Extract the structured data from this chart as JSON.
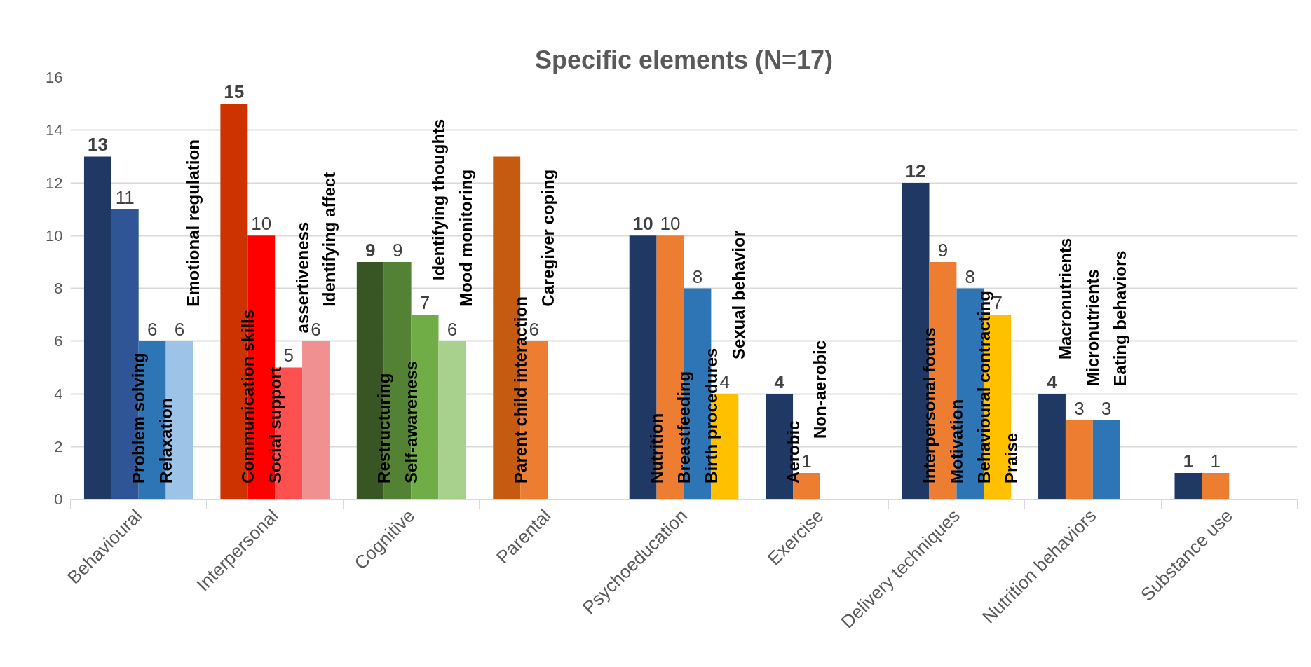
{
  "chart_data": {
    "type": "bar",
    "title": "Specific elements (N=17)",
    "categories": [
      "Behavioural",
      "Interpersonal",
      "Cognitive",
      "Parental",
      "Psychoeducation",
      "Exercise",
      "Delivery techniques",
      "Nutrition behaviors",
      "Substance use"
    ],
    "ylim": [
      0,
      16
    ],
    "yticks": [
      0,
      2,
      4,
      6,
      8,
      10,
      12,
      14,
      16
    ],
    "grid": "y",
    "series": [
      {
        "values": [
          13,
          15,
          9,
          13,
          10,
          4,
          12,
          4,
          1
        ],
        "colors": [
          "#203864",
          "#cc3300",
          "#375623",
          "#c55a11",
          "#203864",
          "#203864",
          "#203864",
          "#203864",
          "#203864"
        ],
        "value_labels": [
          "13",
          "15",
          "9",
          null,
          "10",
          "4",
          "12",
          "4",
          "1"
        ]
      },
      {
        "values": [
          11,
          10,
          9,
          6,
          10,
          1,
          9,
          3,
          1
        ],
        "colors": [
          "#2f5597",
          "#ff0000",
          "#548235",
          "#ed7d31",
          "#ed7d31",
          "#ed7d31",
          "#ed7d31",
          "#ed7d31",
          "#ed7d31"
        ],
        "value_labels": [
          "11",
          "10",
          "9",
          "6",
          "10",
          "1",
          "9",
          "3",
          "1"
        ]
      },
      {
        "values": [
          6,
          5,
          7,
          null,
          8,
          null,
          8,
          3,
          null
        ],
        "colors": [
          "#2e75b6",
          "#ff5050",
          "#70ad47",
          null,
          "#2e75b6",
          null,
          "#2e75b6",
          "#2e75b6",
          null
        ],
        "value_labels": [
          "6",
          "5",
          "7",
          null,
          "8",
          null,
          "8",
          "3",
          null
        ]
      },
      {
        "values": [
          6,
          6,
          6,
          null,
          4,
          null,
          7,
          null,
          null
        ],
        "colors": [
          "#9dc3e6",
          "#f09090",
          "#a9d18e",
          null,
          "#ffc000",
          null,
          "#ffc000",
          null,
          null
        ],
        "value_labels": [
          "6",
          "6",
          "6",
          null,
          "4",
          null,
          "7",
          null,
          null
        ]
      }
    ],
    "annotations": [
      "Problem solving",
      "Relaxation",
      "Emotional regulation",
      "Communication skills",
      "Social support",
      "assertiveness",
      "Identifying affect",
      "Restructuring",
      "Self-awareness",
      "Identifying thoughts",
      "Mood monitoring",
      "Parent child interaction",
      "Caregiver coping",
      "Nutrition",
      "Breastfeeding",
      "Birth procedures",
      "Sexual behavior",
      "Aerobic",
      "Non-aerobic",
      "Interpersonal focus",
      "Motivation",
      "Behavioural contracting",
      "Praise",
      "Macronutrients",
      "Micronutrients",
      "Eating behaviors"
    ]
  }
}
